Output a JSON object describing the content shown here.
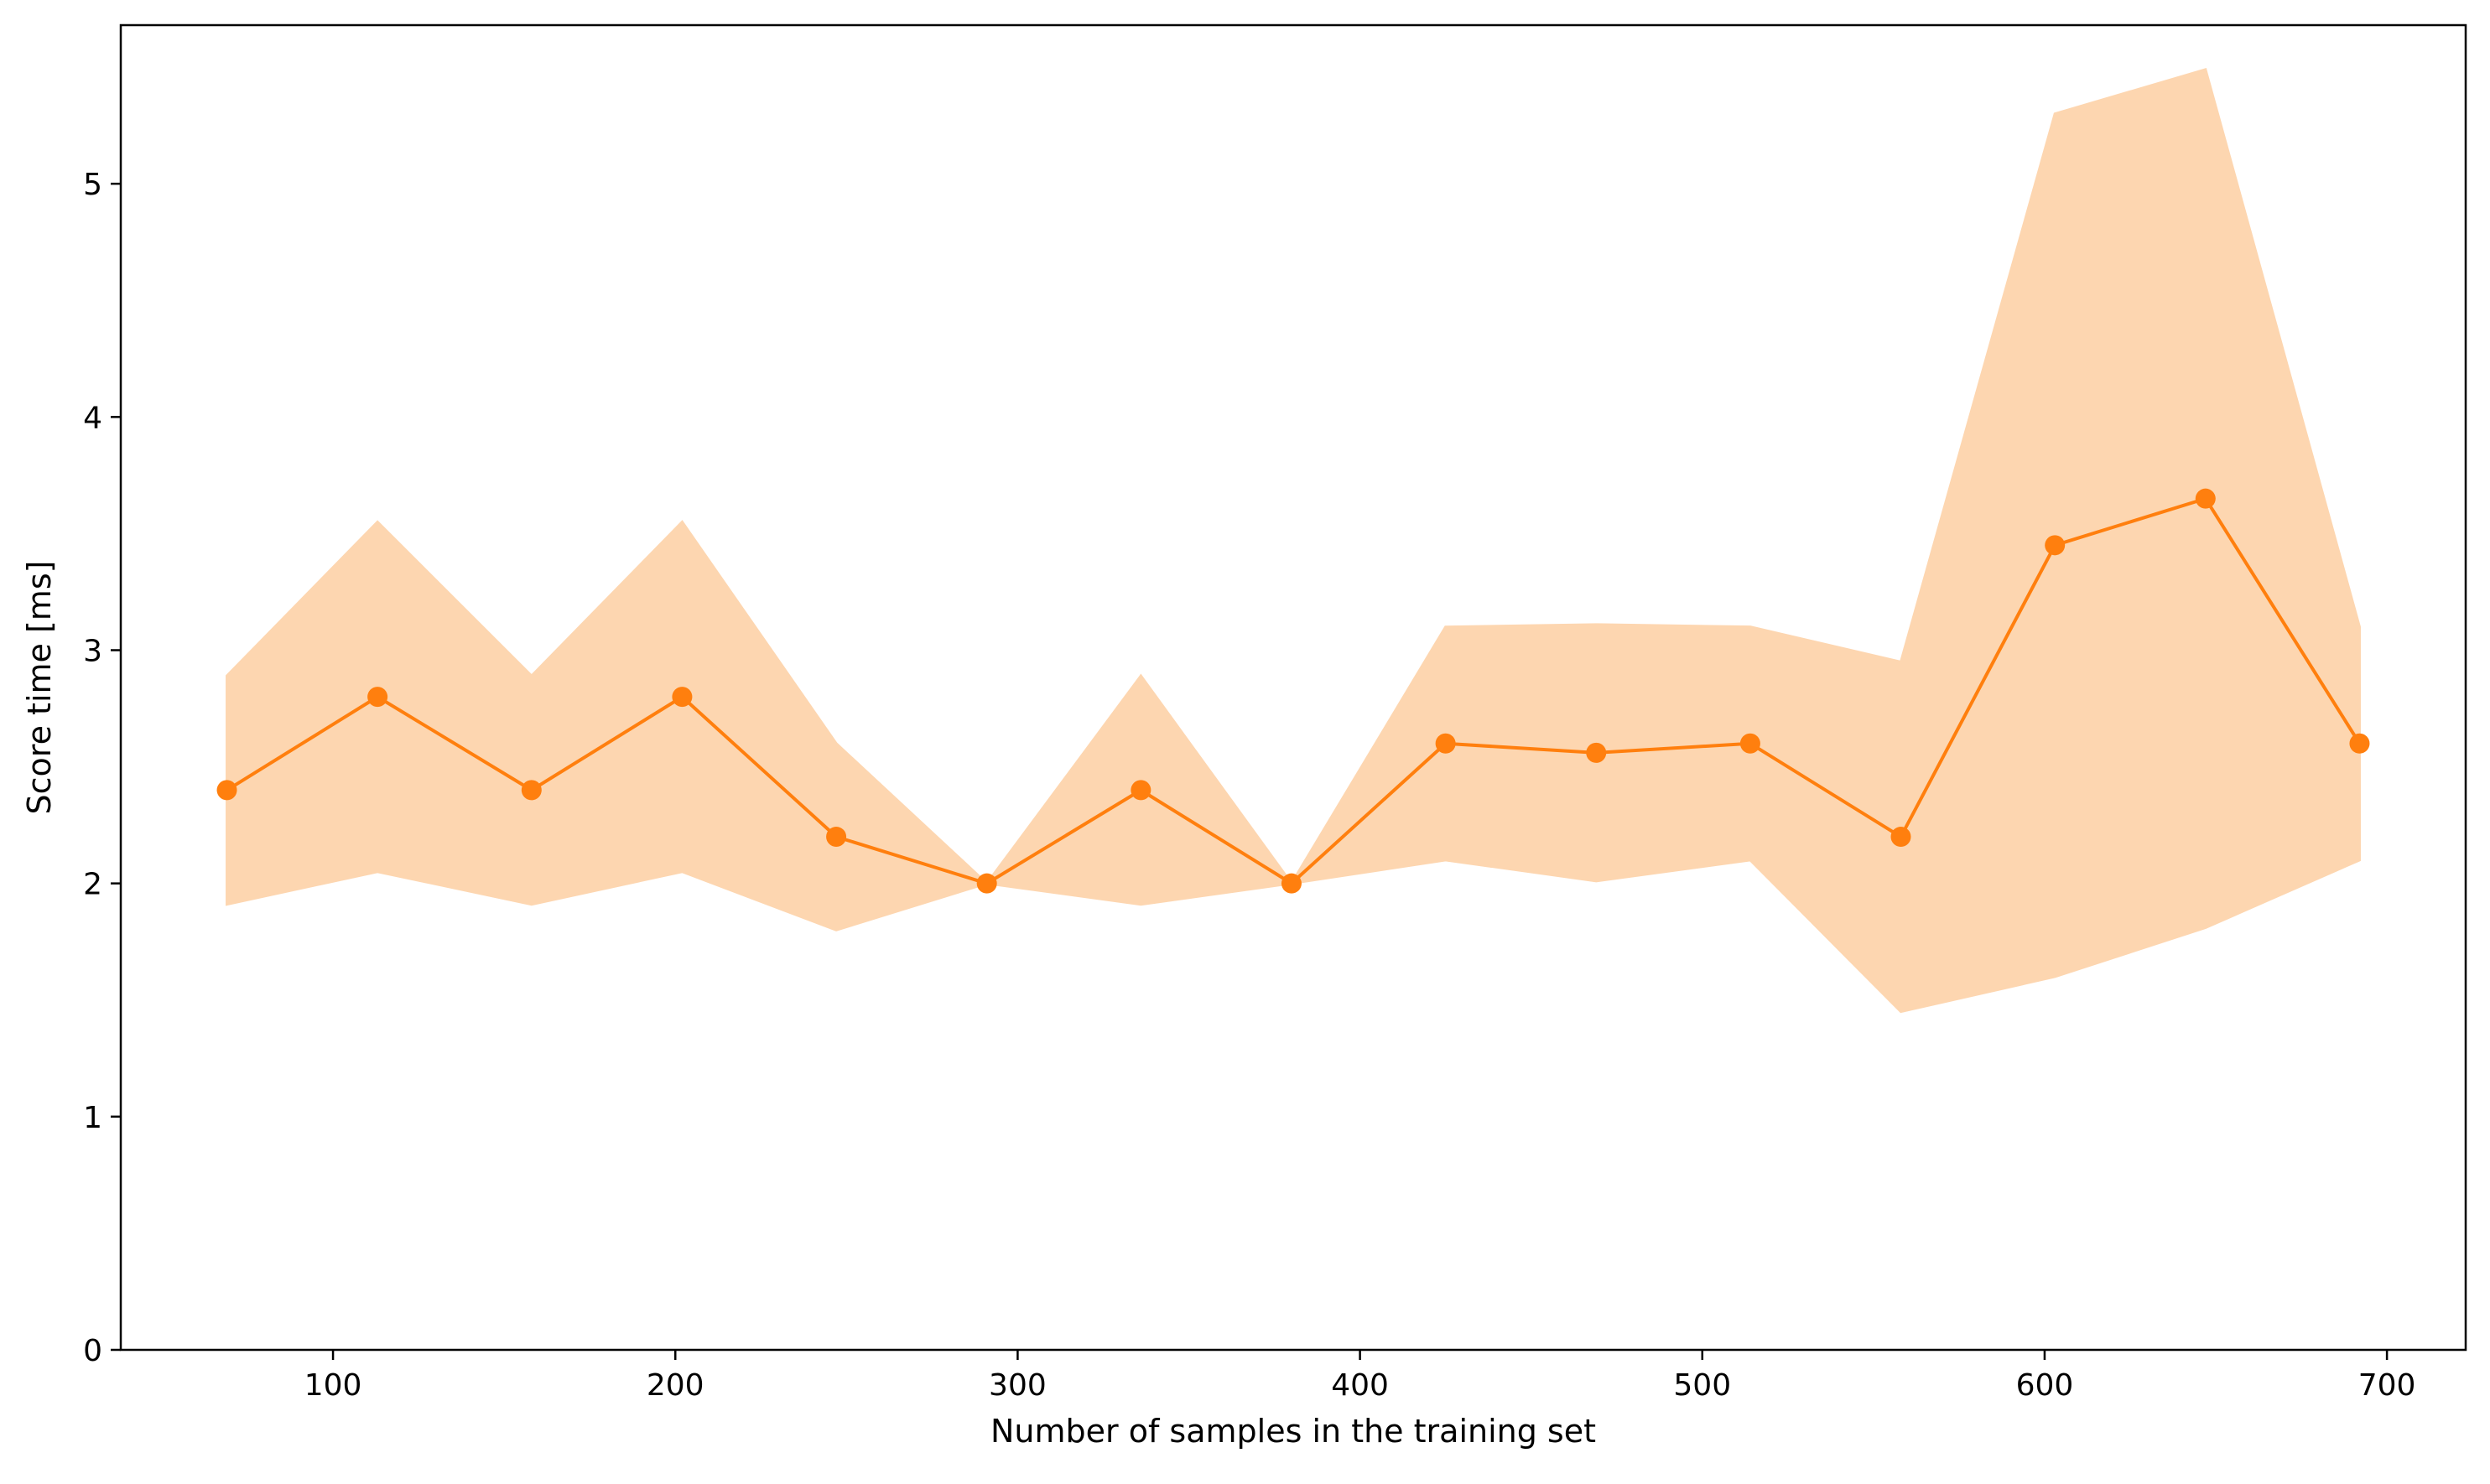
{
  "chart_data": {
    "type": "line",
    "xlabel": "Number of samples in the training set",
    "ylabel": "Score time [ms]",
    "xlim": [
      38,
      723
    ],
    "ylim": [
      0,
      5.68
    ],
    "xticks": [
      100,
      200,
      300,
      400,
      500,
      600,
      700
    ],
    "yticks": [
      0,
      1,
      2,
      3,
      4,
      5
    ],
    "grid": false,
    "series": [
      {
        "color": "#ff7f0e",
        "band_color": "#fdd6b0",
        "marker": "circle",
        "x": [
          69,
          113,
          158,
          202,
          247,
          291,
          336,
          380,
          425,
          469,
          514,
          558,
          603,
          647,
          692
        ],
        "y": [
          2.4,
          2.8,
          2.4,
          2.8,
          2.2,
          2.0,
          2.4,
          2.0,
          2.6,
          2.56,
          2.6,
          2.2,
          3.45,
          3.65,
          2.6
        ],
        "upper": [
          2.89,
          3.55,
          2.89,
          3.55,
          2.6,
          2.0,
          2.89,
          2.0,
          3.1,
          3.11,
          3.1,
          2.95,
          5.3,
          5.49,
          3.1
        ],
        "lower": [
          1.91,
          2.05,
          1.91,
          2.05,
          1.8,
          2.0,
          1.91,
          2.0,
          2.1,
          2.01,
          2.1,
          1.45,
          1.6,
          1.81,
          2.1
        ]
      }
    ]
  }
}
